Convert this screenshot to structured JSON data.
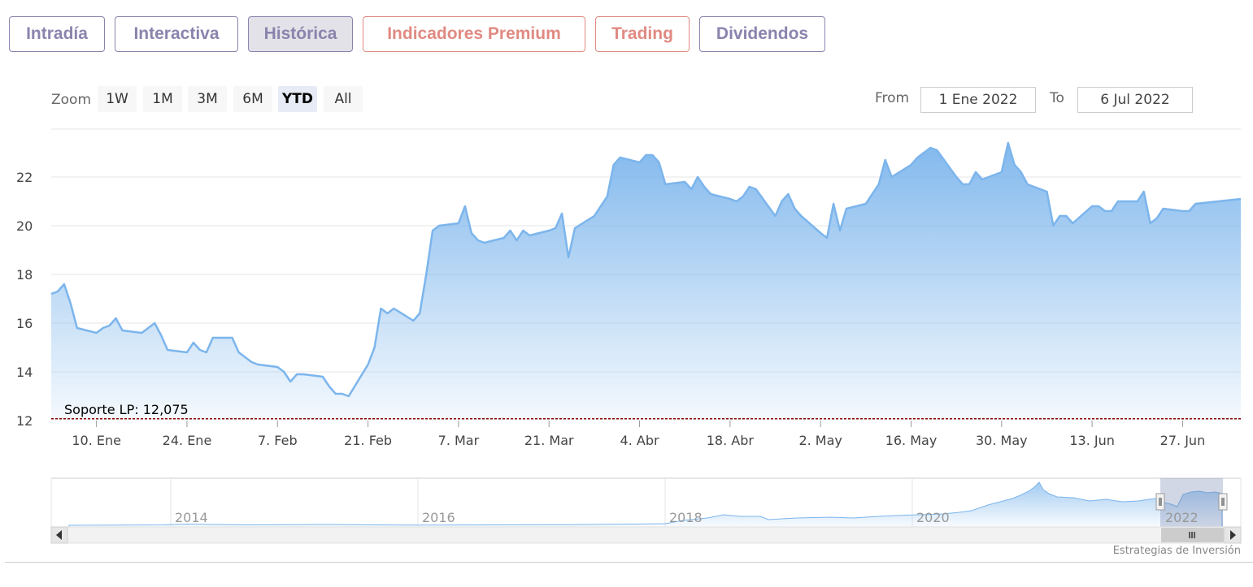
{
  "tabs": [
    {
      "label": "Intradía",
      "style": "purple"
    },
    {
      "label": "Interactiva",
      "style": "purple"
    },
    {
      "label": "Histórica",
      "style": "purple-active"
    },
    {
      "label": "Indicadores Premium",
      "style": "red"
    },
    {
      "label": "Trading",
      "style": "red"
    },
    {
      "label": "Dividendos",
      "style": "purple"
    }
  ],
  "zoom": {
    "label": "Zoom",
    "buttons": [
      "1W",
      "1M",
      "3M",
      "6M",
      "YTD",
      "All"
    ],
    "selected": "YTD"
  },
  "range": {
    "from_label": "From",
    "from_value": "1 Ene 2022",
    "to_label": "To",
    "to_value": "6 Jul 2022"
  },
  "credit": "Estrategias de Inversión",
  "colors": {
    "line": "#7cb5ec",
    "fill_top": "#7cb5ec",
    "support_line": "#8b0000",
    "tab_purple": "#8a84ad",
    "tab_red": "#e08a82"
  },
  "chart_data": {
    "type": "area",
    "title": "",
    "xlabel": "",
    "ylabel": "",
    "ylim": [
      12,
      24
    ],
    "yticks": [
      12,
      14,
      16,
      18,
      20,
      22
    ],
    "xticks": [
      {
        "label": "10. Ene",
        "date": "2022-01-10"
      },
      {
        "label": "24. Ene",
        "date": "2022-01-24"
      },
      {
        "label": "7. Feb",
        "date": "2022-02-07"
      },
      {
        "label": "21. Feb",
        "date": "2022-02-21"
      },
      {
        "label": "7. Mar",
        "date": "2022-03-07"
      },
      {
        "label": "21. Mar",
        "date": "2022-03-21"
      },
      {
        "label": "4. Abr",
        "date": "2022-04-04"
      },
      {
        "label": "18. Abr",
        "date": "2022-04-18"
      },
      {
        "label": "2. May",
        "date": "2022-05-02"
      },
      {
        "label": "16. May",
        "date": "2022-05-16"
      },
      {
        "label": "30. May",
        "date": "2022-05-30"
      },
      {
        "label": "13. Jun",
        "date": "2022-06-13"
      },
      {
        "label": "27. Jun",
        "date": "2022-06-27"
      }
    ],
    "x_range": [
      "2022-01-03",
      "2022-07-06"
    ],
    "grid": true,
    "support": {
      "label": "Soporte LP: 12,075",
      "value": 12.075
    },
    "series": [
      {
        "points": [
          [
            "2022-01-03",
            17.2
          ],
          [
            "2022-01-04",
            17.3
          ],
          [
            "2022-01-05",
            17.6
          ],
          [
            "2022-01-06",
            16.8
          ],
          [
            "2022-01-07",
            15.8
          ],
          [
            "2022-01-10",
            15.6
          ],
          [
            "2022-01-11",
            15.8
          ],
          [
            "2022-01-12",
            15.9
          ],
          [
            "2022-01-13",
            16.2
          ],
          [
            "2022-01-14",
            15.7
          ],
          [
            "2022-01-17",
            15.6
          ],
          [
            "2022-01-18",
            15.8
          ],
          [
            "2022-01-19",
            16.0
          ],
          [
            "2022-01-20",
            15.5
          ],
          [
            "2022-01-21",
            14.9
          ],
          [
            "2022-01-24",
            14.8
          ],
          [
            "2022-01-25",
            15.2
          ],
          [
            "2022-01-26",
            14.9
          ],
          [
            "2022-01-27",
            14.8
          ],
          [
            "2022-01-28",
            15.4
          ],
          [
            "2022-01-31",
            15.4
          ],
          [
            "2022-02-01",
            14.8
          ],
          [
            "2022-02-02",
            14.6
          ],
          [
            "2022-02-03",
            14.4
          ],
          [
            "2022-02-04",
            14.3
          ],
          [
            "2022-02-07",
            14.2
          ],
          [
            "2022-02-08",
            14.0
          ],
          [
            "2022-02-09",
            13.6
          ],
          [
            "2022-02-10",
            13.9
          ],
          [
            "2022-02-11",
            13.9
          ],
          [
            "2022-02-14",
            13.8
          ],
          [
            "2022-02-15",
            13.4
          ],
          [
            "2022-02-16",
            13.1
          ],
          [
            "2022-02-17",
            13.1
          ],
          [
            "2022-02-18",
            13.0
          ],
          [
            "2022-02-21",
            14.3
          ],
          [
            "2022-02-22",
            15.0
          ],
          [
            "2022-02-23",
            16.6
          ],
          [
            "2022-02-24",
            16.4
          ],
          [
            "2022-02-25",
            16.6
          ],
          [
            "2022-02-28",
            16.1
          ],
          [
            "2022-03-01",
            16.4
          ],
          [
            "2022-03-02",
            18.0
          ],
          [
            "2022-03-03",
            19.8
          ],
          [
            "2022-03-04",
            20.0
          ],
          [
            "2022-03-07",
            20.1
          ],
          [
            "2022-03-08",
            20.8
          ],
          [
            "2022-03-09",
            19.7
          ],
          [
            "2022-03-10",
            19.4
          ],
          [
            "2022-03-11",
            19.3
          ],
          [
            "2022-03-14",
            19.5
          ],
          [
            "2022-03-15",
            19.8
          ],
          [
            "2022-03-16",
            19.4
          ],
          [
            "2022-03-17",
            19.8
          ],
          [
            "2022-03-18",
            19.6
          ],
          [
            "2022-03-21",
            19.8
          ],
          [
            "2022-03-22",
            19.9
          ],
          [
            "2022-03-23",
            20.5
          ],
          [
            "2022-03-24",
            18.7
          ],
          [
            "2022-03-25",
            19.9
          ],
          [
            "2022-03-28",
            20.4
          ],
          [
            "2022-03-29",
            20.8
          ],
          [
            "2022-03-30",
            21.2
          ],
          [
            "2022-03-31",
            22.5
          ],
          [
            "2022-04-01",
            22.8
          ],
          [
            "2022-04-04",
            22.6
          ],
          [
            "2022-04-05",
            22.9
          ],
          [
            "2022-04-06",
            22.9
          ],
          [
            "2022-04-07",
            22.6
          ],
          [
            "2022-04-08",
            21.7
          ],
          [
            "2022-04-11",
            21.8
          ],
          [
            "2022-04-12",
            21.5
          ],
          [
            "2022-04-13",
            22.0
          ],
          [
            "2022-04-14",
            21.6
          ],
          [
            "2022-04-15",
            21.3
          ],
          [
            "2022-04-18",
            21.1
          ],
          [
            "2022-04-19",
            21.0
          ],
          [
            "2022-04-20",
            21.2
          ],
          [
            "2022-04-21",
            21.6
          ],
          [
            "2022-04-22",
            21.5
          ],
          [
            "2022-04-25",
            20.4
          ],
          [
            "2022-04-26",
            21.0
          ],
          [
            "2022-04-27",
            21.3
          ],
          [
            "2022-04-28",
            20.7
          ],
          [
            "2022-04-29",
            20.4
          ],
          [
            "2022-05-02",
            19.7
          ],
          [
            "2022-05-03",
            19.5
          ],
          [
            "2022-05-04",
            20.9
          ],
          [
            "2022-05-05",
            19.8
          ],
          [
            "2022-05-06",
            20.7
          ],
          [
            "2022-05-09",
            20.9
          ],
          [
            "2022-05-10",
            21.3
          ],
          [
            "2022-05-11",
            21.7
          ],
          [
            "2022-05-12",
            22.7
          ],
          [
            "2022-05-13",
            22.0
          ],
          [
            "2022-05-16",
            22.5
          ],
          [
            "2022-05-17",
            22.8
          ],
          [
            "2022-05-18",
            23.0
          ],
          [
            "2022-05-19",
            23.2
          ],
          [
            "2022-05-20",
            23.1
          ],
          [
            "2022-05-23",
            22.0
          ],
          [
            "2022-05-24",
            21.7
          ],
          [
            "2022-05-25",
            21.7
          ],
          [
            "2022-05-26",
            22.2
          ],
          [
            "2022-05-27",
            21.9
          ],
          [
            "2022-05-30",
            22.2
          ],
          [
            "2022-05-31",
            23.4
          ],
          [
            "2022-06-01",
            22.5
          ],
          [
            "2022-06-02",
            22.2
          ],
          [
            "2022-06-03",
            21.7
          ],
          [
            "2022-06-06",
            21.4
          ],
          [
            "2022-06-07",
            20.0
          ],
          [
            "2022-06-08",
            20.4
          ],
          [
            "2022-06-09",
            20.4
          ],
          [
            "2022-06-10",
            20.1
          ],
          [
            "2022-06-13",
            20.8
          ],
          [
            "2022-06-14",
            20.8
          ],
          [
            "2022-06-15",
            20.6
          ],
          [
            "2022-06-16",
            20.6
          ],
          [
            "2022-06-17",
            21.0
          ],
          [
            "2022-06-20",
            21.0
          ],
          [
            "2022-06-21",
            21.4
          ],
          [
            "2022-06-22",
            20.1
          ],
          [
            "2022-06-23",
            20.3
          ],
          [
            "2022-06-24",
            20.7
          ],
          [
            "2022-06-27",
            20.6
          ],
          [
            "2022-06-28",
            20.6
          ],
          [
            "2022-06-29",
            20.9
          ]
        ]
      }
    ],
    "navigator": {
      "xticks": [
        "2014",
        "2016",
        "2018",
        "2020",
        "2022"
      ]
    }
  }
}
